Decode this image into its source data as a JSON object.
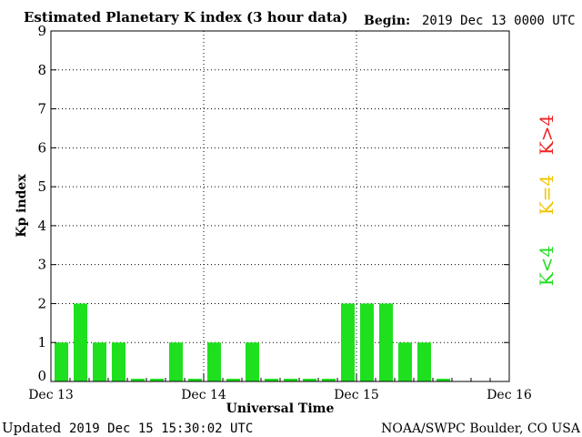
{
  "chart_data": {
    "type": "bar",
    "title": "Estimated Planetary K index (3 hour data)",
    "begin_label": "Begin:",
    "begin_value": "2019 Dec 13 0000 UTC",
    "xlabel": "Universal Time",
    "ylabel": "Kp index",
    "ylim": [
      0,
      9
    ],
    "yticks": [
      "0",
      "1",
      "2",
      "3",
      "4",
      "5",
      "6",
      "7",
      "8",
      "9"
    ],
    "xticks": [
      "Dec 13",
      "Dec 14",
      "Dec 15",
      "Dec 16"
    ],
    "x_unit": "3 hour intervals",
    "grid": true,
    "values": [
      1,
      2,
      1,
      1,
      0.07,
      0.07,
      1,
      0.07,
      1,
      0.07,
      1,
      0.07,
      0.07,
      0.07,
      0.07,
      2,
      2,
      2,
      1,
      1,
      0.07
    ],
    "bar_color": "#1ee01e",
    "legend": [
      {
        "label": "K<4",
        "color": "#22dd22"
      },
      {
        "label": "K=4",
        "color": "#f2c300"
      },
      {
        "label": "K>4",
        "color": "#ee2222"
      }
    ]
  },
  "footer": {
    "updated_label": "Updated",
    "updated_value": "2019 Dec 15 15:30:02 UTC",
    "credit": "NOAA/SWPC Boulder, CO USA"
  }
}
